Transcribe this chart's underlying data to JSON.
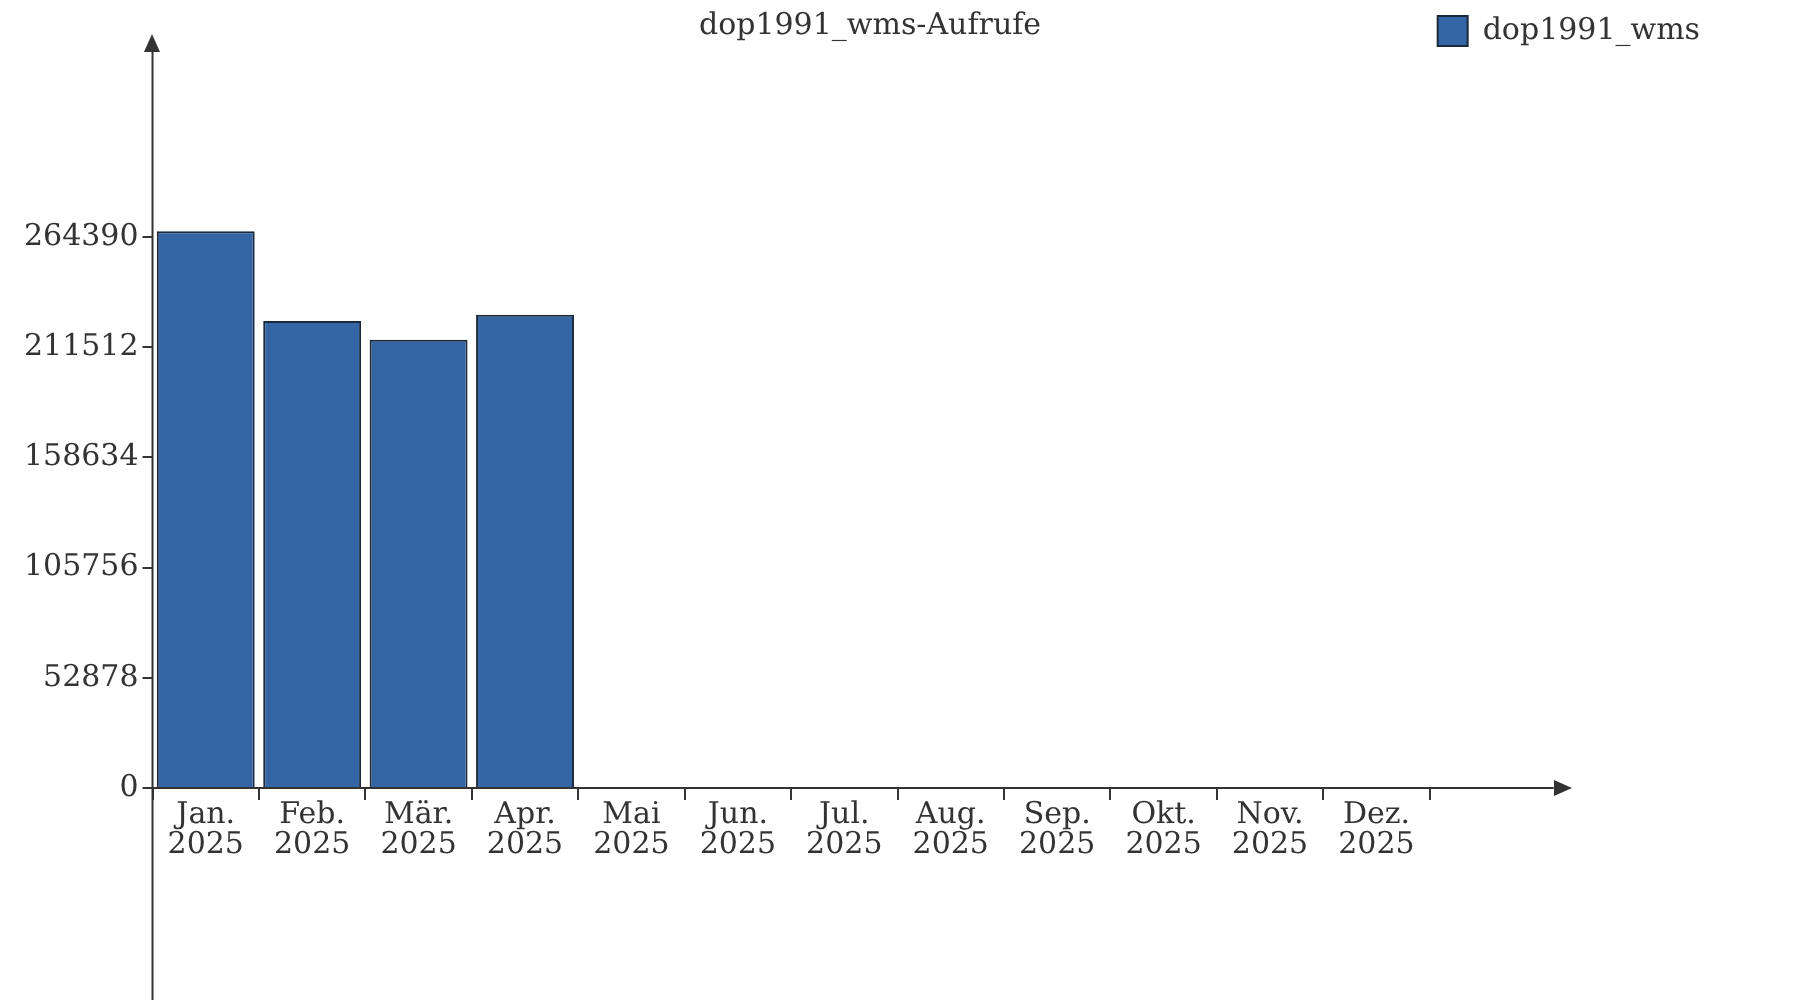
{
  "chart_data": {
    "type": "bar",
    "title": "dop1991_wms-Aufrufe",
    "categories": [
      "Jan. 2025",
      "Feb. 2025",
      "Mär. 2025",
      "Apr. 2025",
      "Mai 2025",
      "Jun. 2025",
      "Jul. 2025",
      "Aug. 2025",
      "Sep. 2025",
      "Okt. 2025",
      "Nov. 2025",
      "Dez. 2025"
    ],
    "series": [
      {
        "name": "dop1991_wms",
        "color": "#3465a4",
        "values": [
          267000,
          224000,
          215000,
          227000,
          0,
          0,
          0,
          0,
          0,
          0,
          0,
          0
        ]
      }
    ],
    "ylim": [
      0,
      353000
    ],
    "yticks": [
      0,
      52878,
      105756,
      158634,
      211512,
      264390
    ],
    "grid": false,
    "legend": "top right"
  }
}
